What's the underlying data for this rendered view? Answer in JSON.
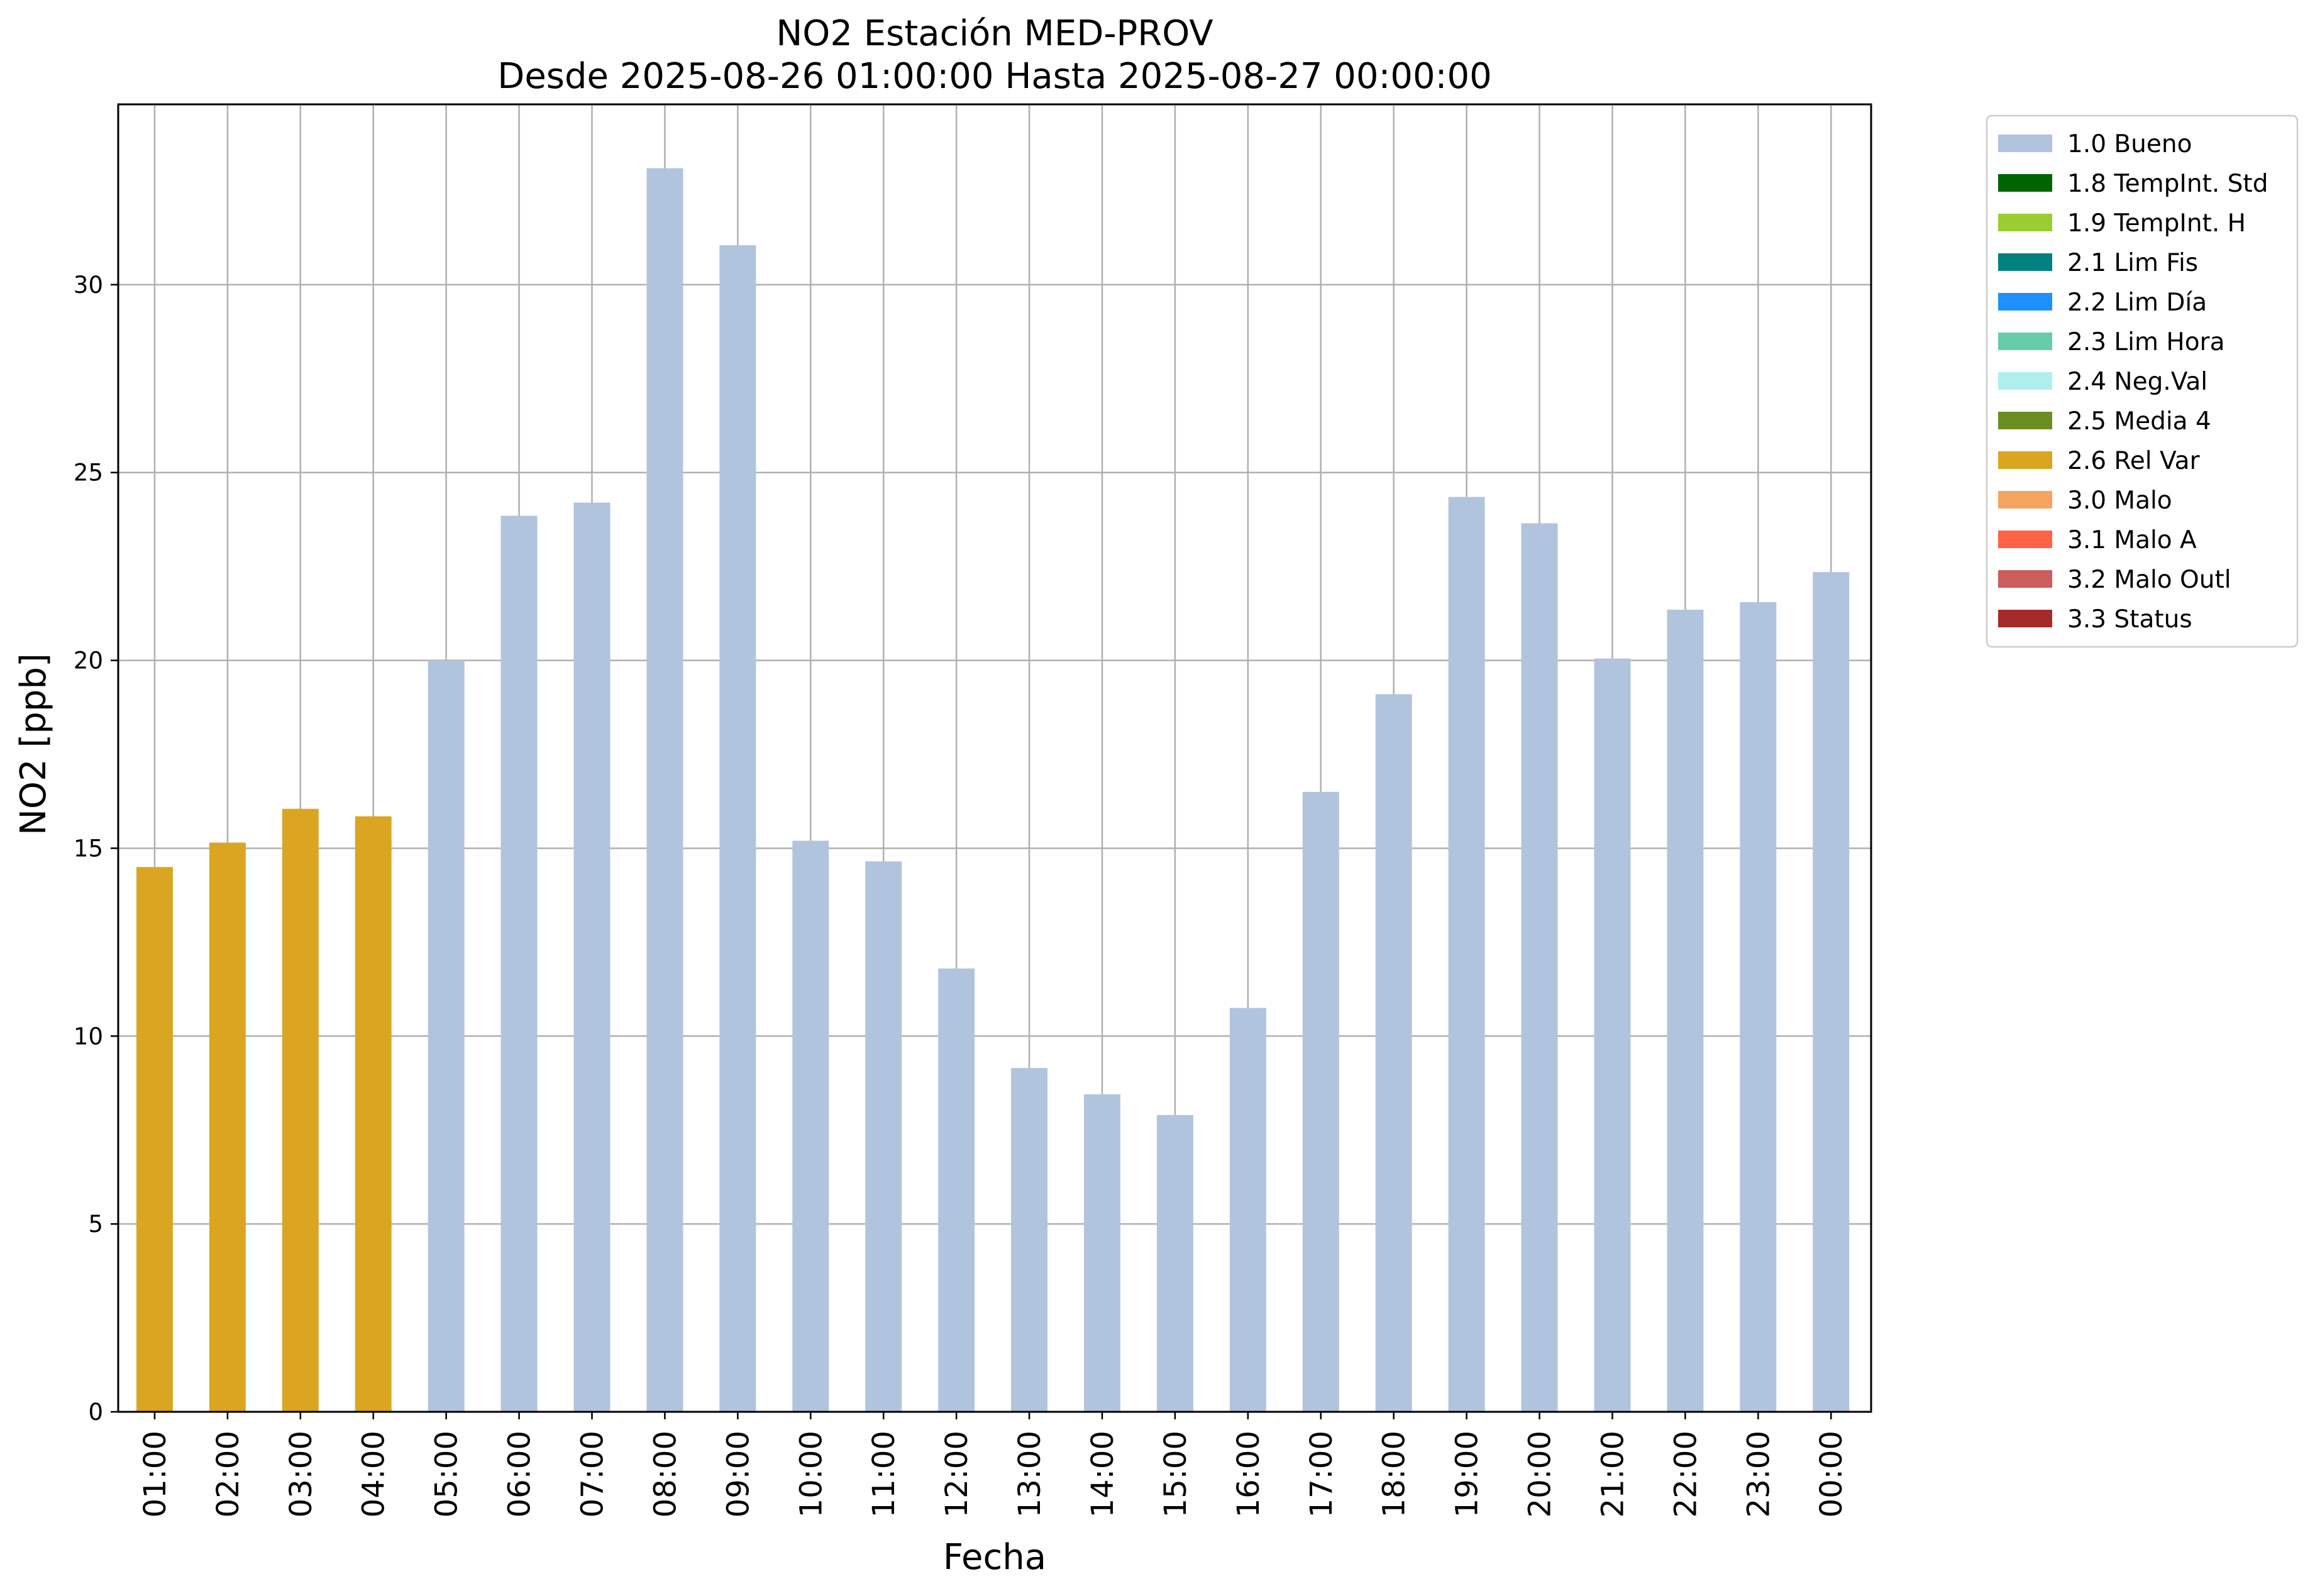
{
  "chart_data": {
    "type": "bar",
    "title": "NO2 Estación MED-PROV",
    "subtitle": "Desde 2025-08-26 01:00:00 Hasta 2025-08-27 00:00:00",
    "xlabel": "Fecha",
    "ylabel": "NO2 [ppb]",
    "ylim": [
      0,
      34.8
    ],
    "yticks": [
      0,
      5,
      10,
      15,
      20,
      25,
      30
    ],
    "grid": true,
    "legend_position": "outside-top-right",
    "categories": [
      "01:00",
      "02:00",
      "03:00",
      "04:00",
      "05:00",
      "06:00",
      "07:00",
      "08:00",
      "09:00",
      "10:00",
      "11:00",
      "12:00",
      "13:00",
      "14:00",
      "15:00",
      "16:00",
      "17:00",
      "18:00",
      "19:00",
      "20:00",
      "21:00",
      "22:00",
      "23:00",
      "00:00"
    ],
    "values": [
      14.5,
      15.15,
      16.05,
      15.85,
      20.0,
      23.85,
      24.2,
      33.1,
      31.05,
      15.2,
      14.65,
      11.8,
      9.15,
      8.45,
      7.9,
      10.75,
      16.5,
      19.1,
      24.35,
      23.65,
      20.05,
      21.35,
      21.55,
      22.35
    ],
    "flags": [
      "2.6 Rel Var",
      "2.6 Rel Var",
      "2.6 Rel Var",
      "2.6 Rel Var",
      "1.0 Bueno",
      "1.0 Bueno",
      "1.0 Bueno",
      "1.0 Bueno",
      "1.0 Bueno",
      "1.0 Bueno",
      "1.0 Bueno",
      "1.0 Bueno",
      "1.0 Bueno",
      "1.0 Bueno",
      "1.0 Bueno",
      "1.0 Bueno",
      "1.0 Bueno",
      "1.0 Bueno",
      "1.0 Bueno",
      "1.0 Bueno",
      "1.0 Bueno",
      "1.0 Bueno",
      "1.0 Bueno",
      "1.0 Bueno"
    ],
    "legend": [
      {
        "label": "1.0 Bueno",
        "color": "#b0c4de"
      },
      {
        "label": "1.8 TempInt. Std",
        "color": "#006400"
      },
      {
        "label": "1.9 TempInt. H",
        "color": "#9acd32"
      },
      {
        "label": "2.1 Lim Fis",
        "color": "#008080"
      },
      {
        "label": "2.2 Lim Día",
        "color": "#1e90ff"
      },
      {
        "label": "2.3 Lim Hora",
        "color": "#66cdaa"
      },
      {
        "label": "2.4 Neg.Val",
        "color": "#afeeee"
      },
      {
        "label": "2.5 Media 4",
        "color": "#6b8e23"
      },
      {
        "label": "2.6 Rel Var",
        "color": "#daa520"
      },
      {
        "label": "3.0 Malo",
        "color": "#f4a460"
      },
      {
        "label": "3.1 Malo A",
        "color": "#ff6347"
      },
      {
        "label": "3.2 Malo Outl",
        "color": "#cd5c5c"
      },
      {
        "label": "3.3 Status",
        "color": "#a52a2a"
      }
    ]
  }
}
